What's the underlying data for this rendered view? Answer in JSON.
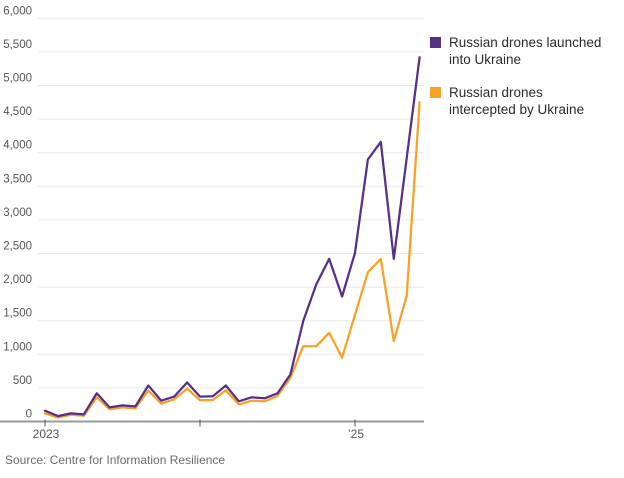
{
  "legend": {
    "items": [
      {
        "line1": "Russian drones launched",
        "line2": "into Ukraine"
      },
      {
        "line1": "Russian drones",
        "line2": "intercepted by Ukraine"
      }
    ]
  },
  "source": {
    "text": "Source: Centre for Information Resilience"
  },
  "chart_data": {
    "type": "line",
    "x": [
      "Jan 2023",
      "Feb 2023",
      "Mar 2023",
      "Apr 2023",
      "May 2023",
      "Jun 2023",
      "Jul 2023",
      "Aug 2023",
      "Sep 2023",
      "Oct 2023",
      "Nov 2023",
      "Dec 2023",
      "Jan 2024",
      "Feb 2024",
      "Mar 2024",
      "Apr 2024",
      "May 2024",
      "Jun 2024",
      "Jul 2024",
      "Aug 2024",
      "Sep 2024",
      "Oct 2024",
      "Nov 2024",
      "Dec 2024",
      "Jan 2025",
      "Feb 2025",
      "Mar 2025",
      "Apr 2025",
      "May 2025",
      "Jun 2025"
    ],
    "series": [
      {
        "name": "Russian drones launched into Ukraine",
        "color": "#562f8a",
        "values": [
          160,
          80,
          120,
          105,
          420,
          210,
          240,
          225,
          535,
          310,
          370,
          580,
          370,
          375,
          535,
          300,
          360,
          345,
          420,
          700,
          1500,
          2040,
          2420,
          1860,
          2510,
          3900,
          4160,
          2420,
          3920,
          5420
        ]
      },
      {
        "name": "Russian drones intercepted by Ukraine",
        "color": "#f7a226",
        "values": [
          120,
          60,
          100,
          85,
          360,
          180,
          210,
          195,
          460,
          265,
          330,
          490,
          315,
          320,
          465,
          255,
          310,
          300,
          380,
          650,
          1120,
          1120,
          1320,
          950,
          1590,
          2220,
          2420,
          1200,
          1870,
          4750
        ]
      }
    ],
    "title": "",
    "xlabel": "",
    "ylabel": "",
    "ylim": [
      0,
      6000
    ],
    "y_ticks": [
      0,
      500,
      1000,
      1500,
      2000,
      2500,
      3000,
      3500,
      4000,
      4500,
      5000,
      5500,
      6000
    ],
    "y_tick_labels": [
      "0",
      "500",
      "1,000",
      "1,500",
      "2,000",
      "2,500",
      "3,000",
      "3,500",
      "4,000",
      "4,500",
      "5,000",
      "5,500",
      "6,000"
    ],
    "x_ticks": [
      {
        "label": "2023",
        "index": 0
      },
      {
        "label": "",
        "index": 12
      },
      {
        "label": "’25",
        "index": 24
      }
    ],
    "grid": "horizontal",
    "legend_position": "right"
  }
}
